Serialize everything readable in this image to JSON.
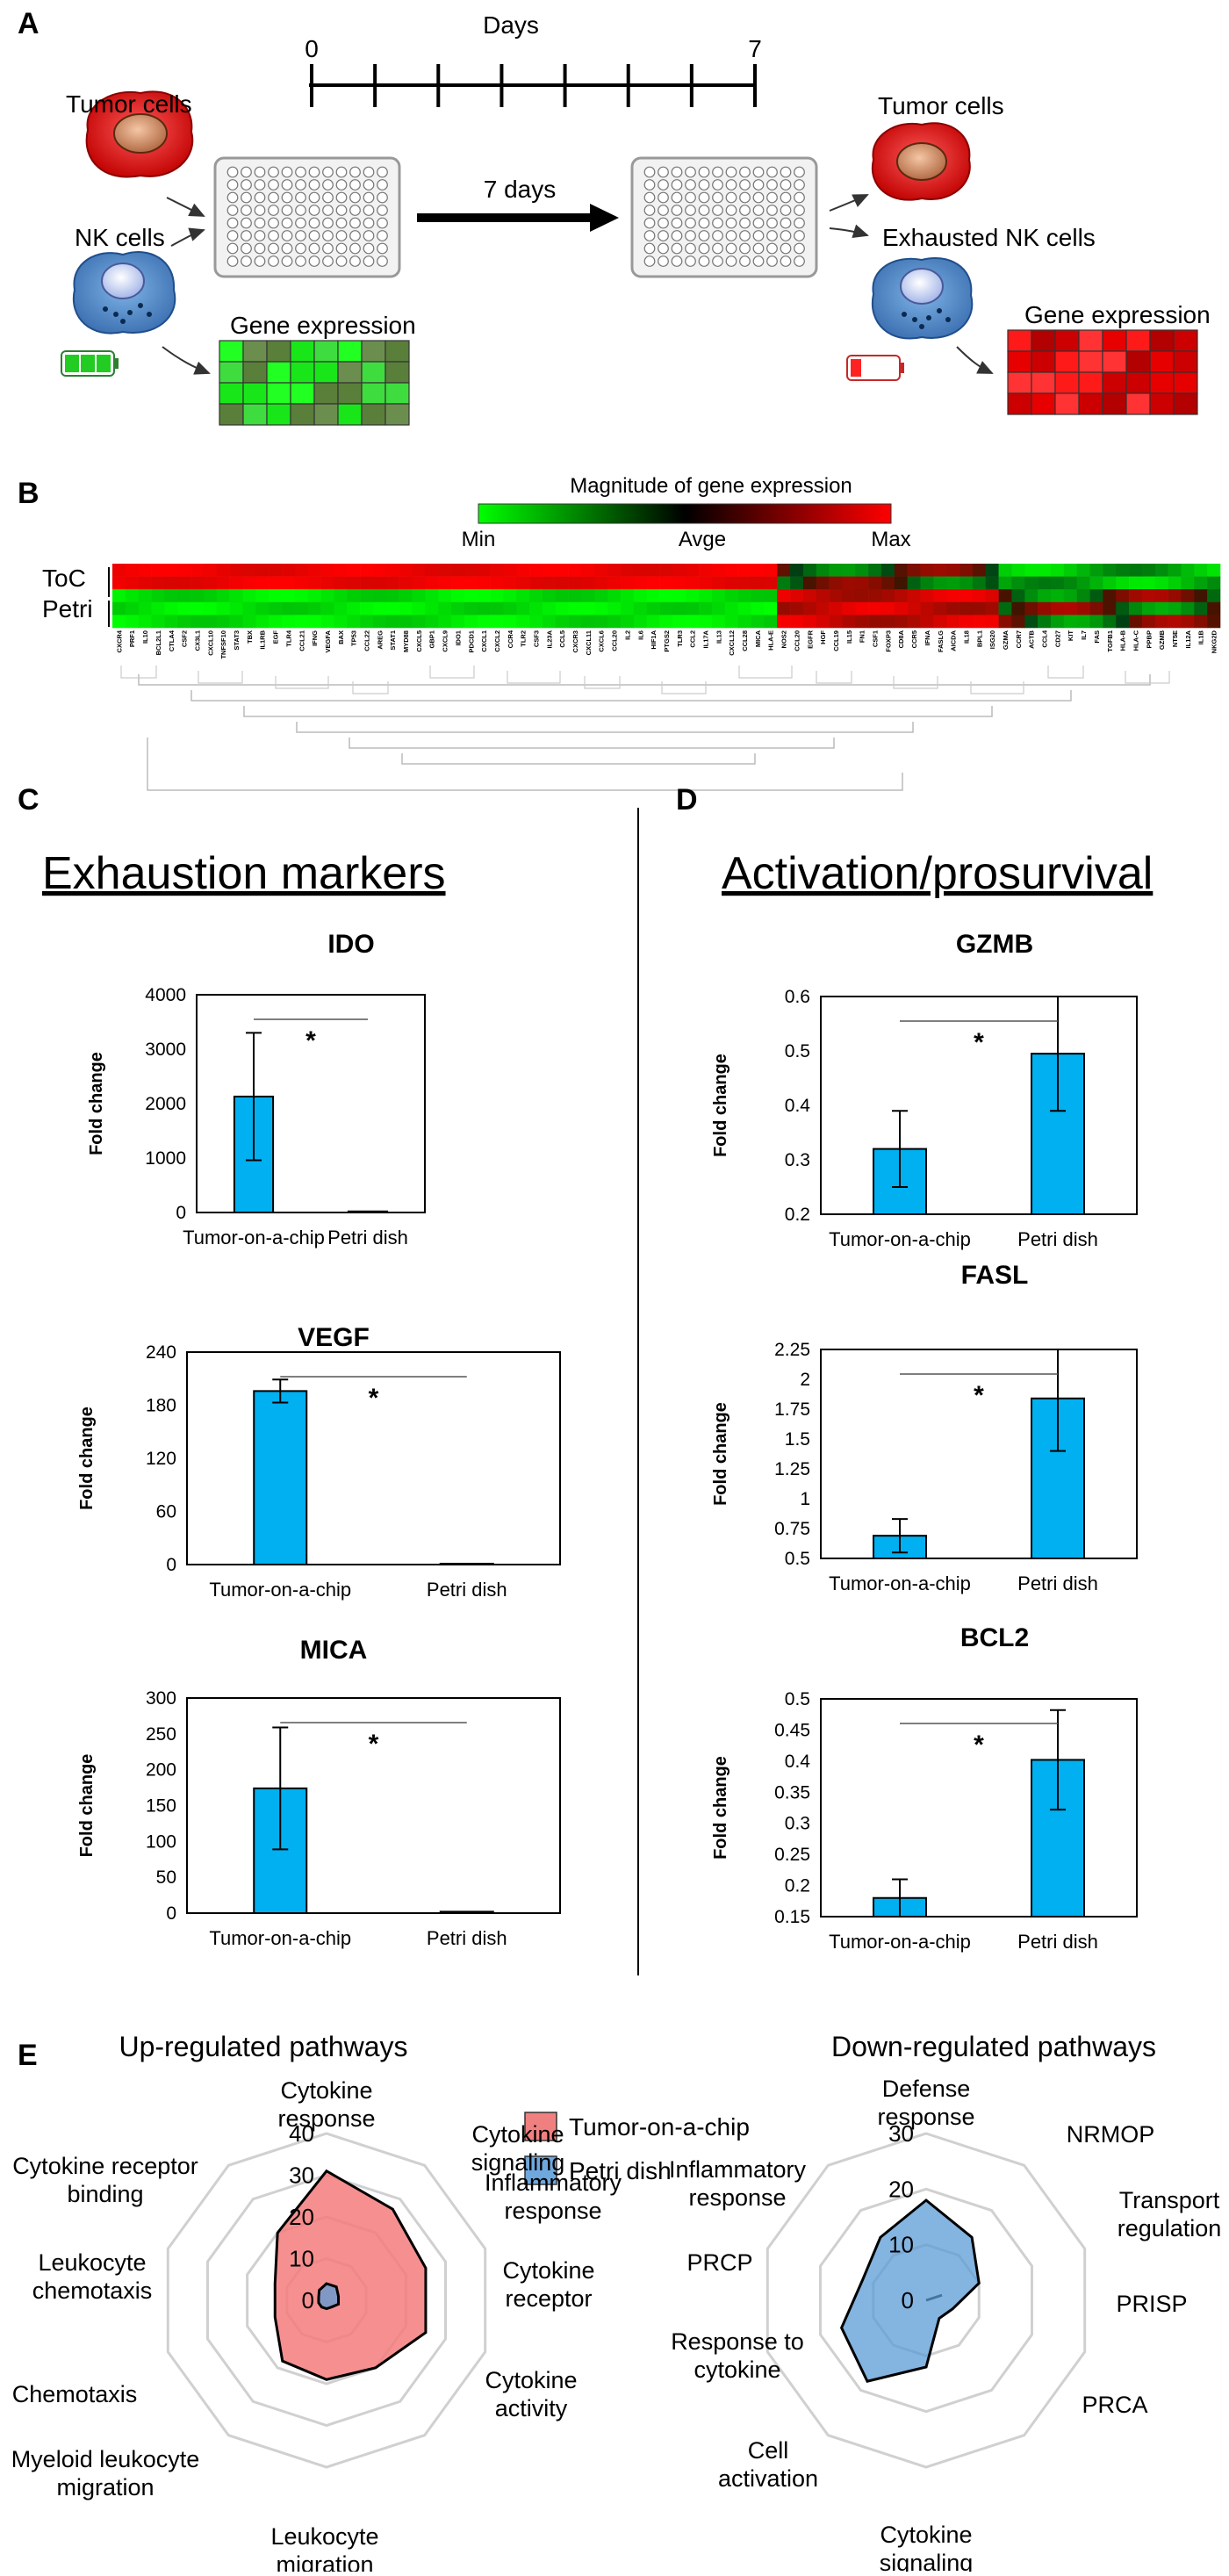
{
  "panels": {
    "A": "A",
    "B": "B",
    "C": "C",
    "D": "D",
    "E": "E"
  },
  "panel_a": {
    "timeline_title": "Days",
    "timeline_start": "0",
    "timeline_end": "7",
    "arrow_label": "7 days",
    "left_tumor": "Tumor cells",
    "left_nk": "NK cells",
    "left_gene": "Gene expression",
    "right_tumor": "Tumor cells",
    "right_nk": "Exhausted NK cells",
    "right_gene": "Gene expression"
  },
  "panel_b": {
    "scale_title": "Magnitude of gene expression",
    "scale_min": "Min",
    "scale_avg": "Avge",
    "scale_max": "Max",
    "row_toc": "ToC",
    "row_petri": "Petri",
    "genes": [
      "CXCR4",
      "PRF1",
      "IL10",
      "BCL2L1",
      "CTLA4",
      "CSF2",
      "CX3L1",
      "CXCL10",
      "TNFSF10",
      "STAT3",
      "TBX",
      "IL1RB",
      "EGF",
      "TLR4",
      "CCL21",
      "IFNG",
      "VEGFA",
      "BAX",
      "TP53",
      "CCL22",
      "AREG",
      "STAT1",
      "MYD88",
      "CXCL5",
      "GBP1",
      "CXCL9",
      "IDO1",
      "PDCD1",
      "CXCL1",
      "CXCL2",
      "CCR4",
      "TLR2",
      "CSF3",
      "IL23A",
      "CCL5",
      "CXCR3",
      "CXCL11",
      "CXCL6",
      "CCL20",
      "IL2",
      "IL6",
      "HIF1A",
      "PTGS2",
      "TLR3",
      "CCL2",
      "IL17A",
      "IL13",
      "CXCL12",
      "CCL28",
      "MICA",
      "HLA-E",
      "NOS2",
      "CCL20",
      "EGFR",
      "HGF",
      "CCL19",
      "IL15",
      "FN1",
      "CSF1",
      "FOXP3",
      "CD8A",
      "CCR5",
      "IFNA",
      "FASLG",
      "AICDA",
      "IL18",
      "BPL1",
      "ISG20",
      "GZMA",
      "CCR7",
      "ACTB",
      "CCL4",
      "CD27",
      "KIT",
      "IL7",
      "FAS",
      "TGFB1",
      "HLA-B",
      "HLA-C",
      "PPBP",
      "GZMB",
      "NT5E",
      "IL12A",
      "IL1B",
      "NKG2D"
    ]
  },
  "panel_c": {
    "heading": "Exhaustion markers"
  },
  "panel_d": {
    "heading": "Activation/prosurvival"
  },
  "ylabel": "Fold change",
  "categories": [
    "Tumor-on-a-chip",
    "Petri dish"
  ],
  "chart_data": [
    {
      "type": "bar",
      "title": "IDO",
      "categories": [
        "Tumor-on-a-chip",
        "Petri dish"
      ],
      "values": [
        2130,
        20
      ],
      "errors": [
        1170,
        0
      ],
      "ylim": [
        0,
        4000
      ],
      "yticks": [
        "0",
        "1000",
        "2000",
        "3000",
        "4000"
      ],
      "ylabel": "Fold change",
      "annotation": "*"
    },
    {
      "type": "bar",
      "title": "VEGF",
      "categories": [
        "Tumor-on-a-chip",
        "Petri dish"
      ],
      "values": [
        196,
        1
      ],
      "errors": [
        13,
        0
      ],
      "ylim": [
        0,
        240
      ],
      "yticks": [
        "0",
        "60",
        "120",
        "180",
        "240"
      ],
      "ylabel": "Fold change",
      "annotation": "*"
    },
    {
      "type": "bar",
      "title": "MICA",
      "categories": [
        "Tumor-on-a-chip",
        "Petri dish"
      ],
      "values": [
        174,
        2
      ],
      "errors": [
        85,
        0
      ],
      "ylim": [
        0,
        300
      ],
      "yticks": [
        "0",
        "50",
        "100",
        "150",
        "200",
        "250",
        "300"
      ],
      "ylabel": "Fold change",
      "annotation": "*"
    },
    {
      "type": "bar",
      "title": "GZMB",
      "categories": [
        "Tumor-on-a-chip",
        "Petri dish"
      ],
      "values": [
        0.32,
        0.495
      ],
      "errors": [
        0.07,
        0.105
      ],
      "ylim": [
        0.2,
        0.6
      ],
      "yticks": [
        "0.2",
        "0.3",
        "0.4",
        "0.5",
        "0.6"
      ],
      "ylabel": "Fold change",
      "annotation": "*"
    },
    {
      "type": "bar",
      "title": "FASL",
      "categories": [
        "Tumor-on-a-chip",
        "Petri dish"
      ],
      "values": [
        0.69,
        1.84
      ],
      "errors": [
        0.14,
        0.44
      ],
      "ylim": [
        0.5,
        2.25
      ],
      "yticks": [
        "0.5",
        "0.75",
        "1",
        "1.25",
        "1.5",
        "1.75",
        "2",
        "2.25"
      ],
      "ylabel": "Fold change",
      "annotation": "*"
    },
    {
      "type": "bar",
      "title": "BCL2",
      "categories": [
        "Tumor-on-a-chip",
        "Petri dish"
      ],
      "values": [
        0.18,
        0.402
      ],
      "errors": [
        0.03,
        0.08
      ],
      "ylim": [
        0.15,
        0.5
      ],
      "yticks": [
        "0.15",
        "0.2",
        "0.25",
        "0.3",
        "0.35",
        "0.4",
        "0.45",
        "0.5"
      ],
      "ylabel": "Fold change",
      "annotation": "*"
    },
    {
      "type": "radar",
      "title": "Up-regulated pathways",
      "axes": [
        "Cytokine response",
        "Cytokine signaling",
        "Inflammatory response",
        "Cytokine receptor",
        "Cytokine activity",
        "Leukocyte migration",
        "Myeloid leukocyte migration",
        "Chemotaxis",
        "Leukocyte chemotaxis",
        "Cytokine receptor binding"
      ],
      "rmax": 40,
      "rticks": [
        "0",
        "10",
        "20",
        "30",
        "40"
      ],
      "series": [
        {
          "name": "Tumor-on-a-chip",
          "values": [
            31,
            27,
            25,
            25,
            20,
            19,
            18,
            13,
            13,
            20
          ]
        },
        {
          "name": "Petri dish",
          "values": [
            4,
            4,
            3,
            3,
            2,
            2,
            2,
            2,
            2,
            3
          ]
        }
      ]
    },
    {
      "type": "radar",
      "title": "Down-regulated pathways",
      "axes": [
        "Defense response",
        "NRMOP",
        "Transport regulation",
        "PRISP",
        "PRCA",
        "Cytokine signaling",
        "Cell activation",
        "Response to cytokine",
        "PRCP",
        "Inflammatory response"
      ],
      "rmax": 30,
      "rticks": [
        "0",
        "10",
        "20",
        "30"
      ],
      "series": [
        {
          "name": "Tumor-on-a-chip",
          "values": [
            0,
            0,
            3,
            0,
            0,
            0,
            0,
            0,
            0,
            0
          ]
        },
        {
          "name": "Petri dish",
          "values": [
            18,
            14,
            10,
            5,
            4,
            12,
            18,
            16,
            12,
            14
          ]
        }
      ]
    }
  ],
  "legend": [
    {
      "label": "Tumor-on-a-chip",
      "color": "#f08080"
    },
    {
      "label": "Petri dish",
      "color": "#6fa8dc"
    }
  ],
  "colors": {
    "bar": "#00b0f0",
    "bar_border": "#000000",
    "toc_fill": "#f47c7c",
    "petri_fill": "#5b9bd5"
  }
}
